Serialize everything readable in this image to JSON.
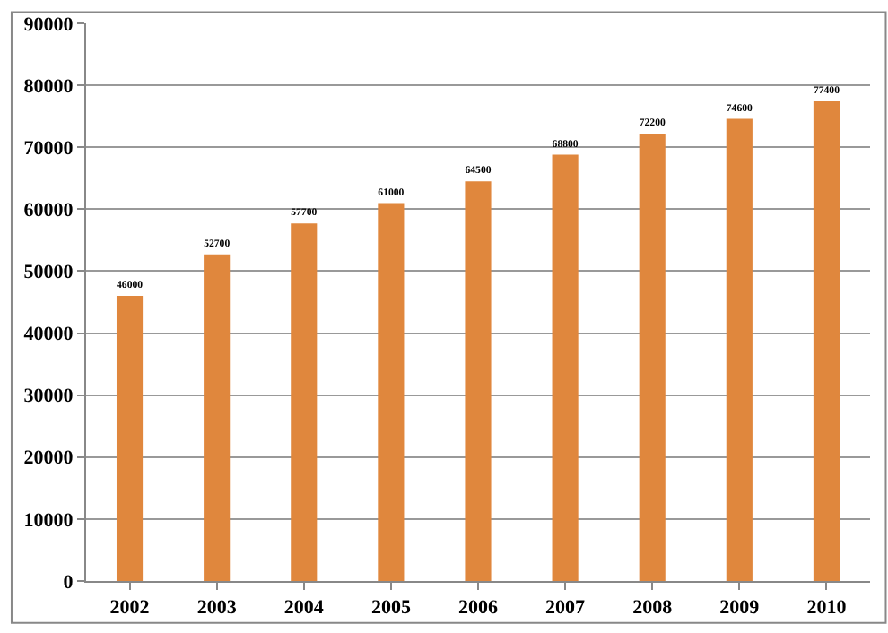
{
  "chart_data": {
    "type": "bar",
    "categories": [
      "2002",
      "2003",
      "2004",
      "2005",
      "2006",
      "2007",
      "2008",
      "2009",
      "2010"
    ],
    "values": [
      46000,
      52700,
      57700,
      61000,
      64500,
      68800,
      72200,
      74600,
      77400
    ],
    "color": "#e0873d",
    "ylim": [
      0,
      90000
    ],
    "yticks": [
      0,
      10000,
      20000,
      30000,
      40000,
      50000,
      60000,
      70000,
      80000,
      90000
    ],
    "grid": "y",
    "data_labels": true,
    "legend": false
  }
}
